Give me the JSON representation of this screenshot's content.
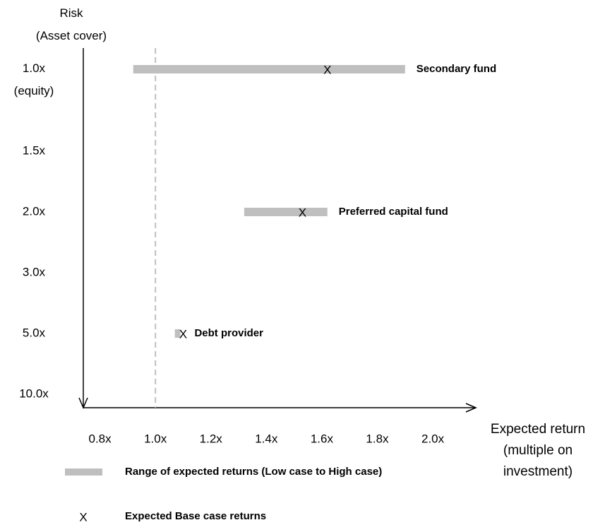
{
  "chart_data": {
    "type": "range",
    "y_label": "Risk\n(Asset cover)",
    "x_label": "Expected return\n(multiple on\ninvestment)",
    "categories": [
      "1.0x\n(equity)",
      "1.5x",
      "2.0x",
      "3.0x",
      "5.0x",
      "10.0x"
    ],
    "low": [
      0.92,
      null,
      1.32,
      null,
      1.07,
      null
    ],
    "high": [
      1.9,
      null,
      1.62,
      null,
      1.09,
      null
    ],
    "base": [
      1.62,
      null,
      1.53,
      null,
      1.1,
      null
    ],
    "labels": [
      "Secondary fund",
      null,
      "Preferred capital fund",
      null,
      "Debt provider",
      null
    ],
    "base_marker": "X",
    "color": "#bfbfbf",
    "reference_line": 1,
    "xlim": [
      0.74,
      2.15
    ],
    "xticks": [
      {
        "value": 0.8,
        "label": "0.8x"
      },
      {
        "value": 1,
        "label": "1.0x"
      },
      {
        "value": 1.2,
        "label": "1.2x"
      },
      {
        "value": 1.4,
        "label": "1.4x"
      },
      {
        "value": 1.6,
        "label": "1.6x"
      },
      {
        "value": 1.8,
        "label": "1.8x"
      },
      {
        "value": 2,
        "label": "2.0x"
      }
    ],
    "legend": [
      "Range of expected returns (Low case to High case)",
      "Expected Base case returns"
    ]
  }
}
